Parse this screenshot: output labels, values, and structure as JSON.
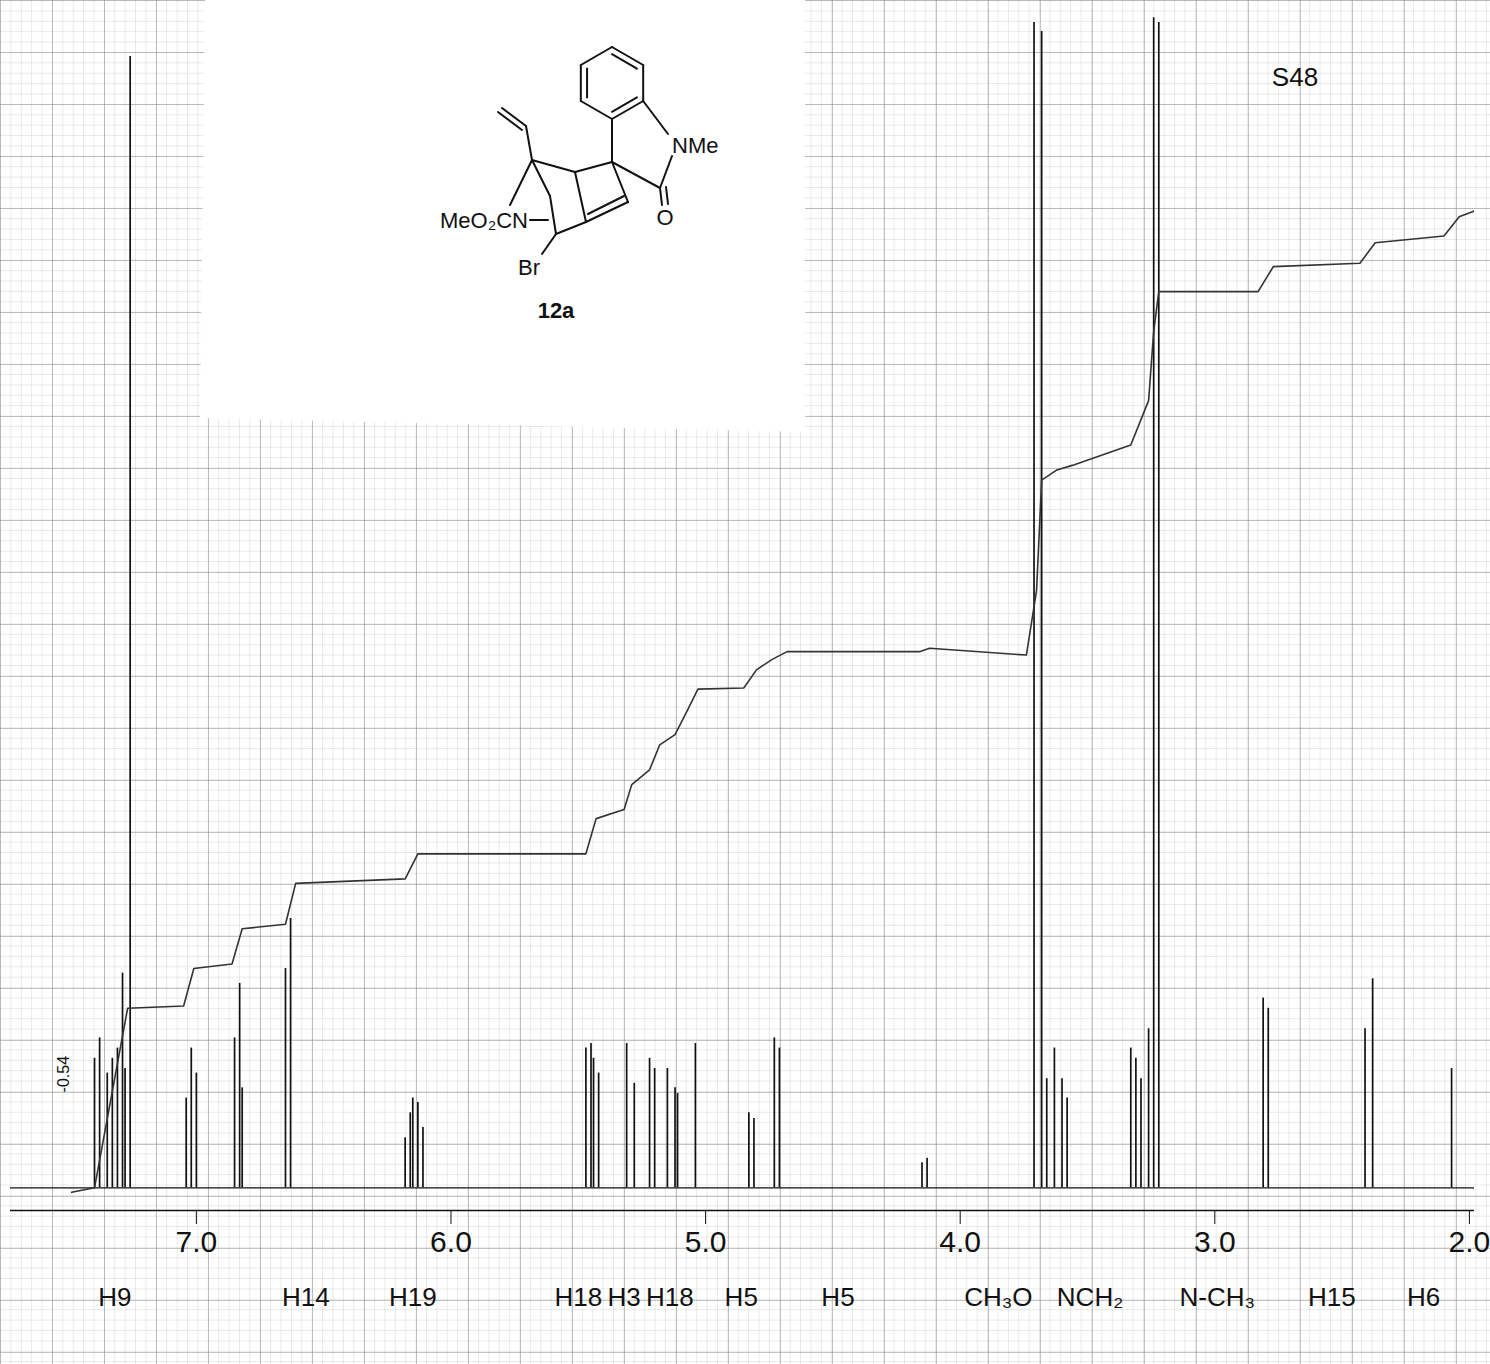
{
  "chart_data": {
    "type": "line",
    "page_label": "S48",
    "compound": {
      "label": "12a",
      "atoms": [
        "NMe",
        "MeO₂CN",
        "Br",
        "O"
      ]
    },
    "xlim": [
      7.73,
      1.98
    ],
    "xticks": [
      7,
      6,
      5,
      4,
      3,
      2
    ],
    "ylim": [
      -2,
      104
    ],
    "grid": true,
    "tick_labels": "x",
    "spectrum": {
      "color": "#111111",
      "baseline": 0,
      "x": [
        7.4,
        7.38,
        7.35,
        7.33,
        7.31,
        7.29,
        7.28,
        7.26,
        7.04,
        7.02,
        7.0,
        6.85,
        6.83,
        6.82,
        6.65,
        6.63,
        6.18,
        6.16,
        6.15,
        6.13,
        6.11,
        5.47,
        5.45,
        5.44,
        5.42,
        5.31,
        5.28,
        5.22,
        5.2,
        5.15,
        5.12,
        5.11,
        5.04,
        4.83,
        4.81,
        4.73,
        4.71,
        4.15,
        4.13,
        3.71,
        3.68,
        3.66,
        3.63,
        3.6,
        3.58,
        3.33,
        3.31,
        3.29,
        3.26,
        3.24,
        3.22,
        2.81,
        2.79,
        2.41,
        2.38,
        2.07
      ],
      "values": [
        11.4,
        13.2,
        10.1,
        11.4,
        12.3,
        18.9,
        10.5,
        99.6,
        7.9,
        12.3,
        10.1,
        13.2,
        18.0,
        8.8,
        19.3,
        23.7,
        4.4,
        6.6,
        7.9,
        7.5,
        5.3,
        12.3,
        12.7,
        11.4,
        10.1,
        12.7,
        9.2,
        11.4,
        10.5,
        10.5,
        8.8,
        8.3,
        12.7,
        6.6,
        6.1,
        13.2,
        12.3,
        2.2,
        2.6,
        102.6,
        101.8,
        9.6,
        12.3,
        9.6,
        7.9,
        12.3,
        11.4,
        9.6,
        14.0,
        103.0,
        102.6,
        16.7,
        15.8,
        14.0,
        18.4,
        10.5
      ]
    },
    "integral": {
      "color": "#333333",
      "x": [
        7.49,
        7.4,
        7.27,
        7.05,
        7.01,
        6.86,
        6.82,
        6.65,
        6.61,
        6.18,
        6.13,
        5.47,
        5.43,
        5.32,
        5.29,
        5.22,
        5.18,
        5.12,
        5.07,
        5.03,
        4.85,
        4.8,
        4.74,
        4.68,
        4.16,
        4.12,
        3.74,
        3.7,
        3.68,
        3.62,
        3.56,
        3.33,
        3.26,
        3.24,
        3.22,
        2.83,
        2.77,
        2.43,
        2.37,
        2.1,
        2.04,
        1.98
      ],
      "values": [
        -0.4,
        0,
        15.8,
        16.0,
        19.3,
        19.7,
        22.8,
        23.2,
        26.8,
        27.2,
        29.4,
        29.4,
        32.5,
        33.3,
        35.5,
        36.8,
        39.0,
        39.9,
        42.1,
        43.9,
        44.0,
        45.6,
        46.5,
        47.2,
        47.2,
        47.5,
        46.9,
        52.6,
        62.3,
        63.2,
        63.6,
        65.4,
        69.3,
        75.4,
        78.9,
        78.9,
        81.1,
        81.4,
        83.2,
        83.8,
        85.5,
        86.0
      ]
    },
    "annotations": [
      {
        "text": "H9",
        "x": 7.32
      },
      {
        "text": "H14",
        "x": 6.57
      },
      {
        "text": "H19",
        "x": 6.15
      },
      {
        "text": "H18",
        "x": 5.5
      },
      {
        "text": "H3",
        "x": 5.32
      },
      {
        "text": "H18",
        "x": 5.14
      },
      {
        "text": "H5",
        "x": 4.86
      },
      {
        "text": "H5",
        "x": 4.48
      },
      {
        "text": "CH₃O",
        "x": 3.85
      },
      {
        "text": "NCH₂",
        "x": 3.49
      },
      {
        "text": "N-CH₃",
        "x": 2.99
      },
      {
        "text": "H15",
        "x": 2.54
      },
      {
        "text": "H6",
        "x": 2.18
      }
    ],
    "notes": [
      {
        "text": "-0.54",
        "x": 7.52,
        "y": 10
      }
    ]
  }
}
